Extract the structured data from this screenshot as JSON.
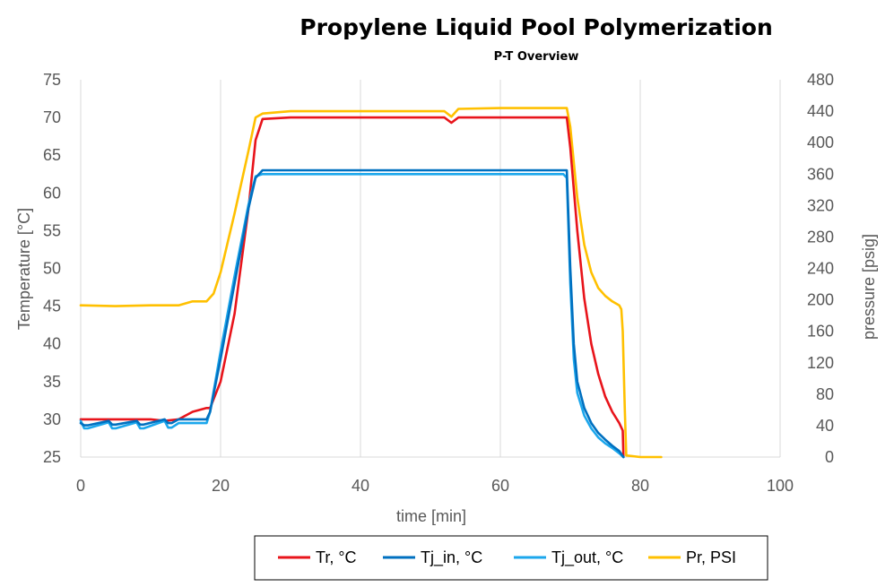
{
  "chart_data": {
    "type": "line",
    "title": "Propylene Liquid Pool Polymerization",
    "subtitle": "P-T Overview",
    "xlabel": "time [min]",
    "ylabel": "Temperature [°C]",
    "y2label": "pressure [psig]",
    "xlim": [
      0,
      100
    ],
    "ylim": [
      25,
      75
    ],
    "y2lim": [
      0,
      480
    ],
    "xticks": [
      0,
      20,
      40,
      60,
      80,
      100
    ],
    "yticks": [
      25,
      30,
      35,
      40,
      45,
      50,
      55,
      60,
      65,
      70,
      75
    ],
    "y2ticks": [
      0,
      40,
      80,
      120,
      160,
      200,
      240,
      280,
      320,
      360,
      400,
      440,
      480
    ],
    "grid": "vertical",
    "legend_position": "bottom",
    "series": [
      {
        "name": "Tr, °C",
        "color": "#e8141b",
        "axis": "left",
        "x": [
          0,
          2,
          4,
          6,
          8,
          10,
          12,
          14,
          16,
          18,
          18.5,
          20,
          22,
          24,
          25,
          26,
          30,
          40,
          50,
          52,
          53,
          54,
          60,
          65,
          69.5,
          70,
          71,
          72,
          73,
          74,
          75,
          76,
          77,
          77.5,
          77.6
        ],
        "y": [
          30.0,
          30.0,
          30.0,
          30.0,
          30.0,
          30.0,
          29.8,
          30.0,
          31.0,
          31.5,
          31.5,
          35.0,
          44.0,
          58.0,
          67.0,
          69.8,
          70.0,
          70.0,
          70.0,
          70.0,
          69.3,
          70.0,
          70.0,
          70.0,
          70.0,
          66.0,
          55.0,
          46.0,
          40.0,
          36.0,
          33.0,
          31.0,
          29.5,
          28.5,
          25.0
        ]
      },
      {
        "name": "Tj_in, °C",
        "color": "#0070c0",
        "axis": "left",
        "x": [
          0,
          0.5,
          1,
          4,
          4.5,
          5,
          8,
          8.5,
          9,
          12,
          12.5,
          13,
          14,
          16,
          18,
          18.5,
          20,
          22,
          24,
          25,
          26,
          30,
          40,
          50,
          60,
          69,
          69.5,
          70,
          70.5,
          71,
          72,
          73,
          74,
          75,
          76,
          77,
          77.6
        ],
        "y": [
          29.5,
          29.2,
          29.2,
          29.8,
          29.3,
          29.3,
          29.8,
          29.3,
          29.3,
          30.0,
          29.5,
          29.5,
          30.0,
          30.0,
          30.0,
          31.0,
          38.0,
          48.0,
          58.0,
          62.0,
          63.0,
          63.0,
          63.0,
          63.0,
          63.0,
          63.0,
          63.0,
          50.0,
          40.0,
          35.0,
          31.5,
          29.5,
          28.2,
          27.3,
          26.5,
          25.8,
          25.0
        ]
      },
      {
        "name": "Tj_out, °C",
        "color": "#1ca7ec",
        "axis": "left",
        "x": [
          0,
          0.5,
          1,
          4,
          4.5,
          5,
          8,
          8.5,
          9,
          12,
          12.5,
          13,
          14,
          16,
          18,
          18.5,
          20,
          22,
          24,
          25,
          26,
          30,
          40,
          50,
          60,
          69,
          69.5,
          70,
          70.5,
          71,
          72,
          73,
          74,
          75,
          76,
          77,
          77.6
        ],
        "y": [
          29.8,
          28.8,
          28.8,
          29.6,
          28.8,
          28.8,
          29.6,
          28.8,
          28.8,
          29.8,
          28.9,
          28.9,
          29.5,
          29.5,
          29.5,
          31.0,
          39.0,
          49.0,
          58.5,
          62.2,
          62.5,
          62.5,
          62.5,
          62.5,
          62.5,
          62.5,
          62.0,
          48.0,
          38.0,
          33.5,
          30.5,
          28.8,
          27.6,
          26.8,
          26.2,
          25.5,
          25.0
        ]
      },
      {
        "name": "Pr, PSI",
        "color": "#ffc000",
        "axis": "right",
        "x": [
          0,
          5,
          10,
          14,
          16,
          18,
          19,
          20,
          22,
          24,
          25,
          26,
          30,
          40,
          52,
          53,
          54,
          60,
          65,
          69.5,
          70,
          71,
          72,
          73,
          74,
          75,
          76,
          77,
          77.3,
          77.5,
          77.8,
          78,
          80,
          83
        ],
        "y": [
          193,
          192,
          193,
          193,
          198,
          198,
          208,
          235,
          310,
          390,
          432,
          437,
          440,
          440,
          440,
          433,
          443,
          444,
          444,
          444,
          420,
          330,
          270,
          235,
          215,
          205,
          198,
          193,
          188,
          160,
          60,
          2,
          0,
          0
        ]
      }
    ],
    "legend": [
      "Tr, °C",
      "Tj_in, °C",
      "Tj_out, °C",
      "Pr, PSI"
    ]
  }
}
